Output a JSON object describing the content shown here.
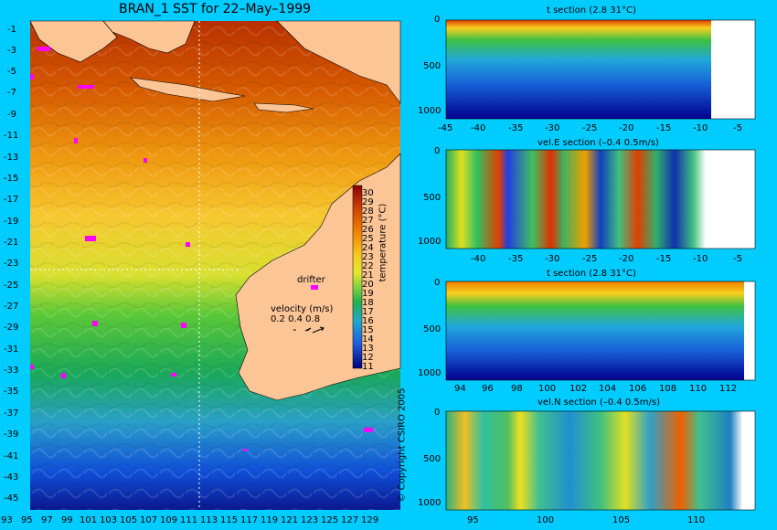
{
  "map": {
    "title": "BRAN_1 SST for 22–May–1999",
    "lat_ticks": [
      "-1",
      "-3",
      "-5",
      "-7",
      "-9",
      "-11",
      "-13",
      "-15",
      "-17",
      "-19",
      "-21",
      "-23",
      "-25",
      "-27",
      "-29",
      "-31",
      "-33",
      "-35",
      "-37",
      "-39",
      "-41",
      "-43",
      "-45"
    ],
    "lon_ticks": [
      "93",
      "95",
      "97",
      "99",
      "101",
      "103",
      "105",
      "107",
      "109",
      "111",
      "113",
      "115",
      "117",
      "119",
      "121",
      "123",
      "125",
      "127",
      "129"
    ],
    "colorbar": {
      "label": "temperature (°C)",
      "ticks": [
        "30",
        "29",
        "28",
        "27",
        "26",
        "25",
        "24",
        "23",
        "22",
        "21",
        "20",
        "19",
        "18",
        "17",
        "16",
        "15",
        "14",
        "13",
        "12",
        "11"
      ]
    },
    "drifter_label": "drifter",
    "velocity": {
      "label": "velocity (m/s)",
      "scale": "0.2 0.4 0.8"
    },
    "copyright": "© Copyright CSIRO 2005"
  },
  "sections": [
    {
      "title": "t section (2.8       31°C)",
      "y_ticks": [
        "0",
        "500",
        "1000"
      ],
      "x_ticks": [
        "-45",
        "-40",
        "-35",
        "-30",
        "-25",
        "-20",
        "-15",
        "-10",
        "-5"
      ]
    },
    {
      "title": "vel.E section (–0.4       0.5m/s)",
      "y_ticks": [
        "0",
        "500",
        "1000"
      ],
      "x_ticks": [
        "-40",
        "-35",
        "-30",
        "-25",
        "-20",
        "-15",
        "-10",
        "-5"
      ]
    },
    {
      "title": "t section (2.8       31°C)",
      "y_ticks": [
        "0",
        "500",
        "1000"
      ],
      "x_ticks": [
        "94",
        "96",
        "98",
        "100",
        "102",
        "104",
        "106",
        "108",
        "110",
        "112"
      ]
    },
    {
      "title": "vel.N section (–0.4       0.5m/s)",
      "y_ticks": [
        "0",
        "500",
        "1000"
      ],
      "x_ticks": [
        "95",
        "100",
        "105",
        "110"
      ]
    }
  ]
}
